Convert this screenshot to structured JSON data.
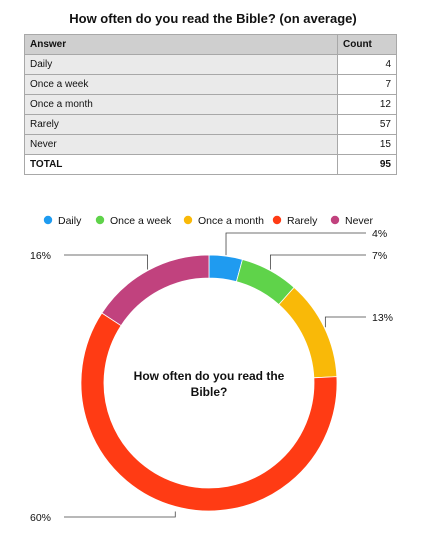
{
  "table": {
    "title": "How often do you read the Bible? (on average)",
    "header": {
      "answer": "Answer",
      "count": "Count"
    },
    "rows": [
      {
        "answer": "Daily",
        "count": "4"
      },
      {
        "answer": "Once a week",
        "count": "7"
      },
      {
        "answer": "Once a month",
        "count": "12"
      },
      {
        "answer": "Rarely",
        "count": "57"
      },
      {
        "answer": "Never",
        "count": "15"
      }
    ],
    "total": {
      "answer": "TOTAL",
      "count": "95"
    }
  },
  "chart_data": {
    "type": "pie",
    "style": "donut",
    "center_title_lines": [
      "How often do you read the",
      "Bible?"
    ],
    "legend_position": "top",
    "categories": [
      "Daily",
      "Once a week",
      "Once a month",
      "Rarely",
      "Never"
    ],
    "values": [
      4,
      7,
      12,
      57,
      15
    ],
    "labels": [
      "4%",
      "7%",
      "13%",
      "60%",
      "16%"
    ],
    "colors": [
      "#1f9bf0",
      "#5fd34a",
      "#f9b908",
      "#ff3b14",
      "#c1427e"
    ]
  }
}
